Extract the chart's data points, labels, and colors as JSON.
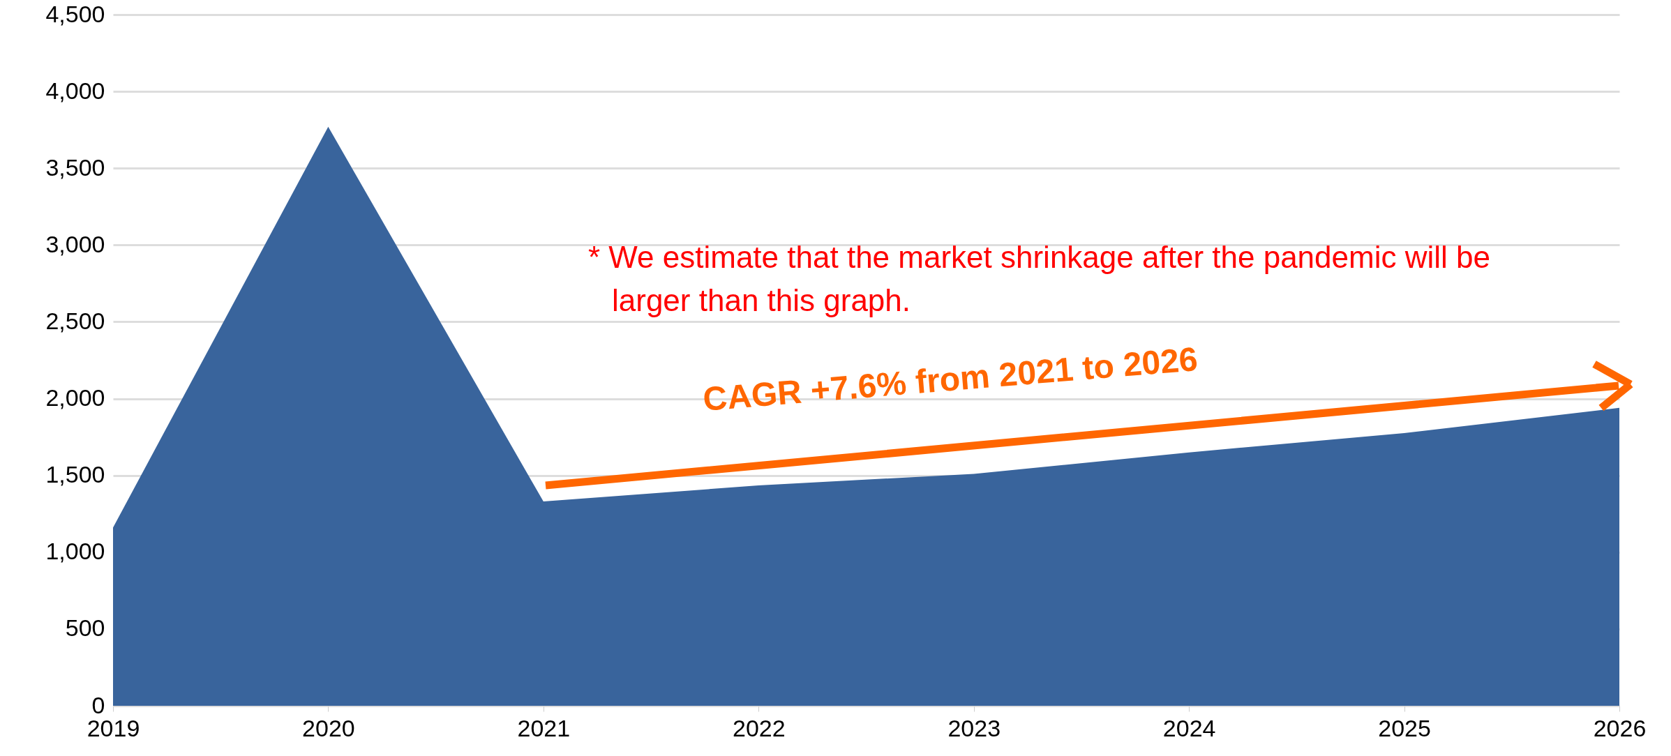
{
  "chart_data": {
    "type": "area",
    "categories": [
      "2019",
      "2020",
      "2021",
      "2022",
      "2023",
      "2024",
      "2025",
      "2026"
    ],
    "series": [
      {
        "color": "#39649c",
        "values": [
          1160,
          3770,
          1330,
          1435,
          1510,
          1650,
          1775,
          1940
        ]
      }
    ],
    "ylim": [
      0,
      4500
    ],
    "yticks": [
      0,
      500,
      {
        "value": 1000,
        "label": "1,000"
      },
      {
        "value": 1500,
        "label": "1,500"
      },
      {
        "value": 2000,
        "label": "2,000"
      },
      {
        "value": 2500,
        "label": "2,500"
      },
      {
        "value": 3000,
        "label": "3,000"
      },
      {
        "value": 3500,
        "label": "3,500"
      },
      {
        "value": 4000,
        "label": "4,000"
      },
      {
        "value": 4500,
        "label": "4,500"
      }
    ],
    "grid": "y",
    "annotations": [
      "* We estimate that the market shrinkage after the pandemic will be larger than this graph.",
      "CAGR +7.6% from 2021 to 2026"
    ]
  }
}
